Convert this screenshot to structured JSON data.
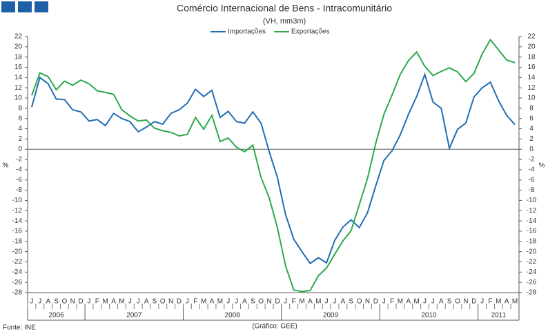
{
  "chart_data": {
    "type": "line",
    "title": "Comércio Internacional de Bens - Intracomunitário",
    "subtitle": "(VH, mm3m)",
    "y_label": "%",
    "source": "Fonte: INE",
    "credit": "(Gráfico: GEE)",
    "categories": [
      "J",
      "J",
      "A",
      "S",
      "O",
      "N",
      "D",
      "J",
      "F",
      "M",
      "A",
      "M",
      "J",
      "J",
      "A",
      "S",
      "O",
      "N",
      "D",
      "J",
      "F",
      "M",
      "A",
      "M",
      "J",
      "J",
      "A",
      "S",
      "O",
      "N",
      "D",
      "J",
      "F",
      "M",
      "A",
      "M",
      "J",
      "J",
      "A",
      "S",
      "O",
      "N",
      "D",
      "J",
      "F",
      "M",
      "A",
      "M",
      "J",
      "J",
      "A",
      "S",
      "O",
      "N",
      "D",
      "J",
      "F",
      "M",
      "A",
      "M"
    ],
    "years": [
      "2006",
      "2007",
      "2008",
      "2009",
      "2010",
      "2011"
    ],
    "series": [
      {
        "name": "Importações",
        "color": "#1f6db3",
        "values": [
          8.2,
          14,
          12.8,
          9.8,
          9.7,
          7.7,
          7.3,
          5.5,
          5.8,
          4.6,
          7.0,
          6.0,
          5.4,
          3.4,
          4.3,
          5.4,
          4.9,
          7.0,
          7.7,
          9.0,
          11.7,
          10.3,
          11.5,
          6.2,
          7.4,
          5.4,
          5.1,
          7.3,
          5.1,
          -0.5,
          -5.5,
          -12.8,
          -17.6,
          -20,
          -22.3,
          -21.2,
          -22.2,
          -17.8,
          -15.2,
          -13.8,
          -15.3,
          -12.4,
          -7.2,
          -2.2,
          -0.3,
          2.8,
          6.8,
          10.3,
          14.6,
          9.2,
          8.0,
          0.2,
          3.9,
          5.1,
          10.2,
          12.0,
          13.1,
          9.5,
          6.6,
          4.8
        ]
      },
      {
        "name": "Exportações",
        "color": "#2aa84a",
        "values": [
          10.5,
          14.9,
          14.2,
          11.6,
          13.3,
          12.5,
          13.5,
          12.8,
          11.4,
          11.1,
          10.7,
          7.7,
          6.5,
          5.5,
          5.7,
          4.1,
          3.6,
          3.3,
          2.6,
          2.9,
          6.2,
          3.9,
          6.6,
          1.5,
          2.2,
          0.4,
          -0.5,
          0.8,
          -5.5,
          -9.5,
          -15.3,
          -22.8,
          -27.5,
          -27.8,
          -27.6,
          -24.7,
          -23.2,
          -20.5,
          -17.9,
          -15.9,
          -10.8,
          -5.7,
          1.1,
          6.8,
          10.6,
          14.6,
          17.3,
          19.0,
          16.2,
          14.4,
          15.2,
          15.9,
          15.1,
          13.2,
          14.8,
          18.6,
          21.4,
          19.4,
          17.4,
          16.9
        ]
      }
    ],
    "ylim": [
      -28,
      22
    ],
    "yticks": [
      -28,
      -26,
      -24,
      -22,
      -20,
      -18,
      -16,
      -14,
      -12,
      -10,
      -8,
      -6,
      -4,
      -2,
      0,
      2,
      4,
      6,
      8,
      10,
      12,
      14,
      16,
      18,
      20,
      22
    ],
    "legend": "top"
  }
}
